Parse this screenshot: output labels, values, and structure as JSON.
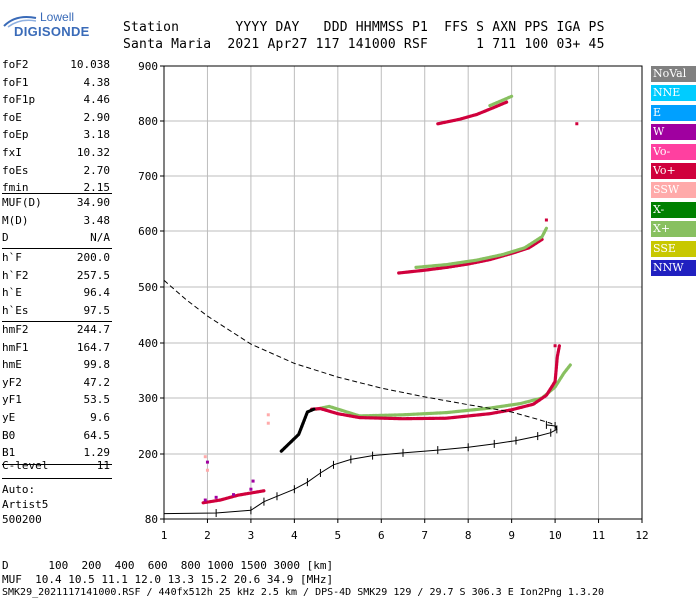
{
  "logo": {
    "line1": "Lowell",
    "line2": "DIGISONDE"
  },
  "header": {
    "line1": "Station       YYYY DAY   DDD HHMMSS P1  FFS S AXN PPS IGA PS",
    "line2": "Santa Maria  2021 Apr27 117 141000 RSF      1 711 100 03+ 45"
  },
  "params": {
    "group1": [
      {
        "k": "foF2",
        "v": "10.038"
      },
      {
        "k": "foF1",
        "v": "4.38"
      },
      {
        "k": "foF1p",
        "v": "4.46"
      },
      {
        "k": "foE",
        "v": "2.90"
      },
      {
        "k": "foEp",
        "v": "3.18"
      },
      {
        "k": "fxI",
        "v": "10.32"
      },
      {
        "k": "foEs",
        "v": "2.70"
      },
      {
        "k": "fmin",
        "v": "2.15"
      }
    ],
    "group2": [
      {
        "k": "MUF(D)",
        "v": "34.90"
      },
      {
        "k": "M(D)",
        "v": "3.48"
      },
      {
        "k": "D",
        "v": "N/A"
      }
    ],
    "group3": [
      {
        "k": "h`F",
        "v": "200.0"
      },
      {
        "k": "h`F2",
        "v": "257.5"
      },
      {
        "k": "h`E",
        "v": "96.4"
      },
      {
        "k": "h`Es",
        "v": "97.5"
      }
    ],
    "group4": [
      {
        "k": "hmF2",
        "v": "244.7"
      },
      {
        "k": "hmF1",
        "v": "164.7"
      },
      {
        "k": "hmE",
        "v": "99.8"
      },
      {
        "k": "yF2",
        "v": "47.2"
      },
      {
        "k": "yF1",
        "v": "53.5"
      },
      {
        "k": "yE",
        "v": "9.6"
      },
      {
        "k": "B0",
        "v": "64.5"
      },
      {
        "k": "B1",
        "v": "1.29"
      }
    ],
    "group5": [
      {
        "k": "C-level",
        "v": "11"
      }
    ],
    "auto": [
      "Auto:",
      "Artist5",
      "500200"
    ]
  },
  "legend": [
    {
      "label": "NoVal",
      "color": "#808080"
    },
    {
      "label": "NNE",
      "color": "#00ccff"
    },
    {
      "label": "E",
      "color": "#00a0ff"
    },
    {
      "label": "W",
      "color": "#a000a0"
    },
    {
      "label": "Vo-",
      "color": "#ff40a0"
    },
    {
      "label": "Vo+",
      "color": "#d0003c"
    },
    {
      "label": "SSW",
      "color": "#ffaaaa"
    },
    {
      "label": "X-",
      "color": "#008000"
    },
    {
      "label": "X+",
      "color": "#88c060"
    },
    {
      "label": "SSE",
      "color": "#c8c800"
    },
    {
      "label": "NNW",
      "color": "#2020c0"
    }
  ],
  "footer": {
    "line1": "D      100  200  400  600  800 1000 1500 3000 [km]",
    "line2": "MUF  10.4 10.5 11.1 12.0 13.3 15.2 20.6 34.9 [MHz]",
    "line3": "SMK29_2021117141000.RSF / 440fx512h 25 kHz 2.5 km / DPS-4D SMK29 129 / 29.7 S 306.3 E Ion2Png 1.3.20"
  },
  "chart_data": {
    "type": "scatter",
    "xlabel": "",
    "ylabel": "",
    "xlim": [
      1,
      12
    ],
    "ylim": [
      80,
      900
    ],
    "xticks": [
      1,
      2,
      3,
      4,
      5,
      6,
      7,
      8,
      9,
      10,
      11,
      12
    ],
    "yticks": [
      80,
      200,
      300,
      400,
      500,
      600,
      700,
      800,
      900
    ],
    "grid": true,
    "series": [
      {
        "name": "X+",
        "style": "line",
        "color": "#88c060",
        "points": [
          [
            4.5,
            280
          ],
          [
            4.8,
            285
          ],
          [
            5.5,
            268
          ],
          [
            6.5,
            270
          ],
          [
            7.5,
            274
          ],
          [
            8.5,
            282
          ],
          [
            9.2,
            290
          ],
          [
            9.7,
            300
          ],
          [
            10.0,
            320
          ],
          [
            10.2,
            345
          ],
          [
            10.35,
            360
          ]
        ]
      },
      {
        "name": "Vo+",
        "style": "line",
        "color": "#d0003c",
        "points": [
          [
            4.4,
            280
          ],
          [
            4.6,
            281
          ],
          [
            5.0,
            272
          ],
          [
            5.5,
            265
          ],
          [
            6.5,
            263
          ],
          [
            7.5,
            264
          ],
          [
            8.5,
            272
          ],
          [
            9.0,
            279
          ],
          [
            9.5,
            289
          ],
          [
            9.8,
            305
          ],
          [
            10.0,
            330
          ],
          [
            10.05,
            375
          ],
          [
            10.1,
            395
          ]
        ]
      },
      {
        "name": "Vo+",
        "style": "line",
        "color": "#d0003c",
        "points": [
          [
            6.4,
            525
          ],
          [
            7.0,
            530
          ],
          [
            7.5,
            535
          ],
          [
            8.0,
            541
          ],
          [
            8.5,
            549
          ],
          [
            9.0,
            560
          ],
          [
            9.4,
            570
          ],
          [
            9.7,
            585
          ]
        ]
      },
      {
        "name": "X+",
        "style": "line",
        "color": "#88c060",
        "points": [
          [
            6.8,
            535
          ],
          [
            7.5,
            540
          ],
          [
            8.2,
            548
          ],
          [
            8.8,
            558
          ],
          [
            9.3,
            570
          ],
          [
            9.7,
            590
          ],
          [
            9.8,
            605
          ]
        ]
      },
      {
        "name": "Vo+",
        "style": "line",
        "color": "#d0003c",
        "points": [
          [
            7.3,
            795
          ],
          [
            7.8,
            803
          ],
          [
            8.2,
            812
          ],
          [
            8.6,
            825
          ],
          [
            8.9,
            835
          ]
        ]
      },
      {
        "name": "X+",
        "style": "line",
        "color": "#88c060",
        "points": [
          [
            8.5,
            828
          ],
          [
            8.8,
            838
          ],
          [
            9.0,
            845
          ]
        ]
      },
      {
        "name": "Vo+",
        "style": "line",
        "color": "#d0003c",
        "points": [
          [
            1.9,
            110
          ],
          [
            2.3,
            115
          ],
          [
            2.7,
            124
          ],
          [
            3.0,
            128
          ],
          [
            3.3,
            132
          ]
        ]
      },
      {
        "name": "W",
        "style": "points",
        "color": "#a000a0",
        "points": [
          [
            1.95,
            115
          ],
          [
            2.2,
            120
          ],
          [
            2.6,
            125
          ],
          [
            3.0,
            135
          ],
          [
            3.05,
            150
          ],
          [
            2.0,
            185
          ]
        ]
      },
      {
        "name": "SSW",
        "style": "points",
        "color": "#ffaaaa",
        "points": [
          [
            1.95,
            195
          ],
          [
            2.0,
            170
          ],
          [
            3.4,
            255
          ],
          [
            3.4,
            270
          ]
        ]
      },
      {
        "name": "Vo+",
        "style": "points",
        "color": "#d0003c",
        "points": [
          [
            10.5,
            795
          ],
          [
            9.8,
            620
          ],
          [
            10.0,
            395
          ]
        ]
      },
      {
        "name": "",
        "style": "line",
        "color": "#000000",
        "points": [
          [
            3.7,
            205
          ],
          [
            3.9,
            220
          ],
          [
            4.1,
            235
          ],
          [
            4.3,
            275
          ],
          [
            4.45,
            280
          ]
        ]
      },
      {
        "name": "",
        "style": "dashed",
        "color": "#000000",
        "points": [
          [
            1.0,
            512
          ],
          [
            1.5,
            478
          ],
          [
            2.0,
            448
          ],
          [
            3.0,
            398
          ],
          [
            4.0,
            363
          ],
          [
            5.0,
            338
          ],
          [
            6.0,
            318
          ],
          [
            7.0,
            302
          ],
          [
            8.0,
            288
          ],
          [
            9.0,
            275
          ],
          [
            9.6,
            262
          ],
          [
            9.9,
            255
          ],
          [
            10.04,
            248
          ]
        ]
      },
      {
        "name": "",
        "style": "ticked",
        "color": "#000000",
        "points": [
          [
            1.0,
            90
          ],
          [
            2.2,
            91
          ],
          [
            3.0,
            96
          ],
          [
            3.3,
            112
          ],
          [
            3.6,
            122
          ],
          [
            4.0,
            135
          ],
          [
            4.3,
            148
          ],
          [
            4.6,
            165
          ],
          [
            4.9,
            180
          ],
          [
            5.3,
            190
          ],
          [
            5.8,
            197
          ],
          [
            6.5,
            202
          ],
          [
            7.3,
            207
          ],
          [
            8.0,
            212
          ],
          [
            8.6,
            218
          ],
          [
            9.1,
            224
          ],
          [
            9.6,
            232
          ],
          [
            9.9,
            238
          ],
          [
            10.04,
            244
          ],
          [
            10.0,
            250
          ],
          [
            9.8,
            252
          ]
        ]
      }
    ]
  }
}
